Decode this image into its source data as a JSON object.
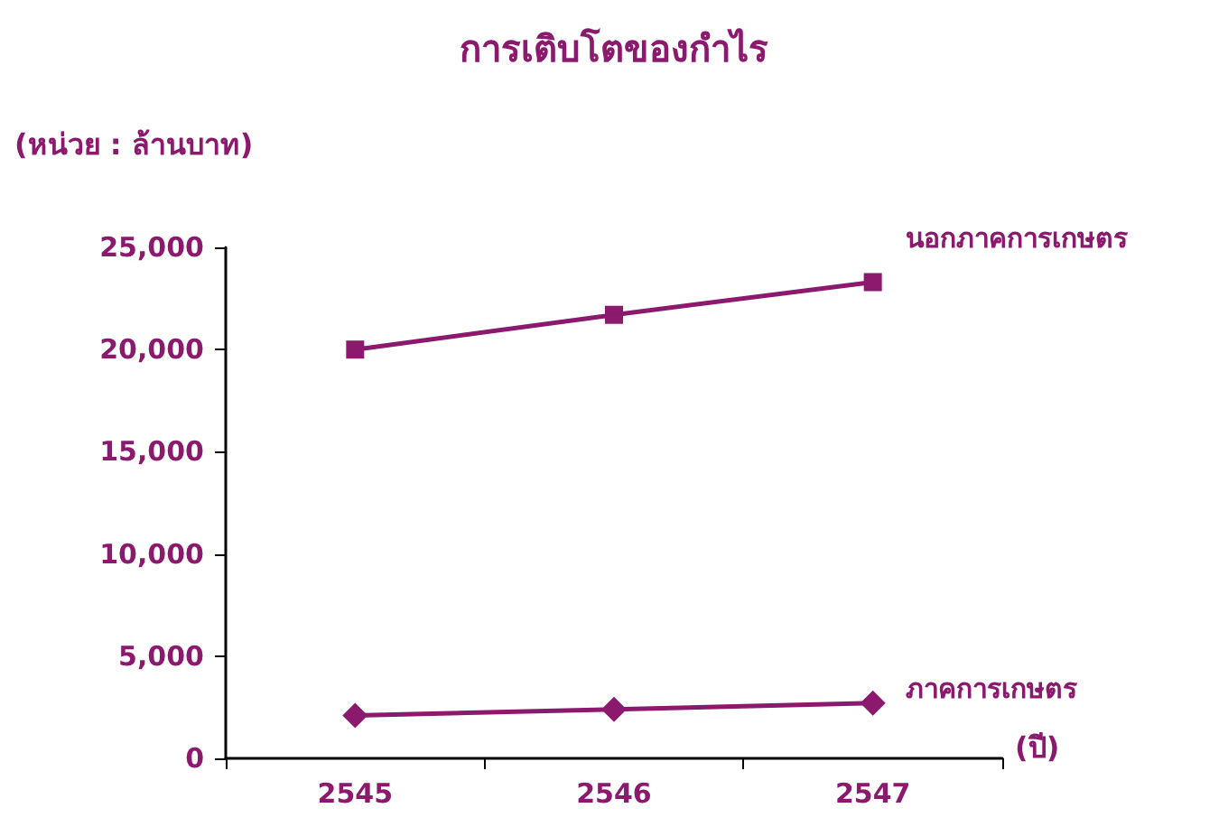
{
  "chart_data": {
    "type": "line",
    "title": "การเติบโตของกำไร",
    "ylabel": "(หน่วย : ล้านบาท)",
    "xlabel": "(ปี)",
    "categories": [
      "2545",
      "2546",
      "2547"
    ],
    "series": [
      {
        "name": "นอกภาคการเกษตร",
        "color": "#8b1a6e",
        "marker": "square",
        "values": [
          20000,
          21700,
          23300
        ]
      },
      {
        "name": "ภาคการเกษตร",
        "color": "#8b1a6e",
        "marker": "diamond",
        "values": [
          2100,
          2400,
          2700
        ]
      }
    ],
    "ylim": [
      0,
      25000
    ],
    "yticks": [
      0,
      {
        "value": 5000,
        "label": "5,000"
      },
      {
        "value": 10000,
        "label": "10,000"
      },
      {
        "value": 15000,
        "label": "15,000"
      },
      {
        "value": 20000,
        "label": "20,000"
      },
      {
        "value": 25000,
        "label": "25,000"
      }
    ],
    "grid": false,
    "legend": false,
    "line_style": "solid"
  }
}
